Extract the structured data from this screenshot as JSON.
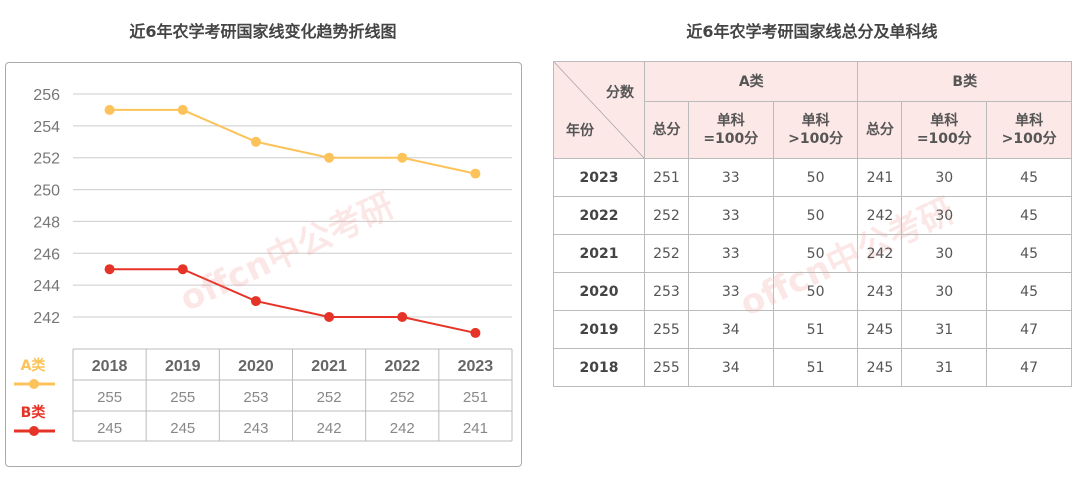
{
  "chart_data": {
    "type": "line",
    "title": "近6年农学考研国家线变化趋势折线图",
    "categories": [
      "2018",
      "2019",
      "2020",
      "2021",
      "2022",
      "2023"
    ],
    "series": [
      {
        "name": "A类",
        "values": [
          255,
          255,
          253,
          252,
          252,
          251
        ],
        "color": "#fcc35b"
      },
      {
        "name": "B类",
        "values": [
          245,
          245,
          243,
          242,
          242,
          241
        ],
        "color": "#e53327"
      }
    ],
    "yticks": [
      242,
      244,
      246,
      248,
      250,
      252,
      254,
      256
    ],
    "ylim": [
      240,
      257
    ],
    "grid": true,
    "legend": "left, beside data table"
  },
  "watermark": "offcn中公考研",
  "table": {
    "title": "近6年农学考研国家线总分及单科线",
    "corner_top": "分数",
    "corner_bottom": "年份",
    "group_a": "A类",
    "group_b": "B类",
    "sub": [
      [
        "总分"
      ],
      [
        "单科",
        "=100分"
      ],
      [
        "单科",
        ">100分"
      ],
      [
        "总分"
      ],
      [
        "单科",
        "=100分"
      ],
      [
        "单科",
        ">100分"
      ]
    ],
    "rows": [
      [
        "2023",
        "251",
        "33",
        "50",
        "241",
        "30",
        "45"
      ],
      [
        "2022",
        "252",
        "33",
        "50",
        "242",
        "30",
        "45"
      ],
      [
        "2021",
        "252",
        "33",
        "50",
        "242",
        "30",
        "45"
      ],
      [
        "2020",
        "253",
        "33",
        "50",
        "243",
        "30",
        "45"
      ],
      [
        "2019",
        "255",
        "34",
        "51",
        "245",
        "31",
        "47"
      ],
      [
        "2018",
        "255",
        "34",
        "51",
        "245",
        "31",
        "47"
      ]
    ]
  }
}
